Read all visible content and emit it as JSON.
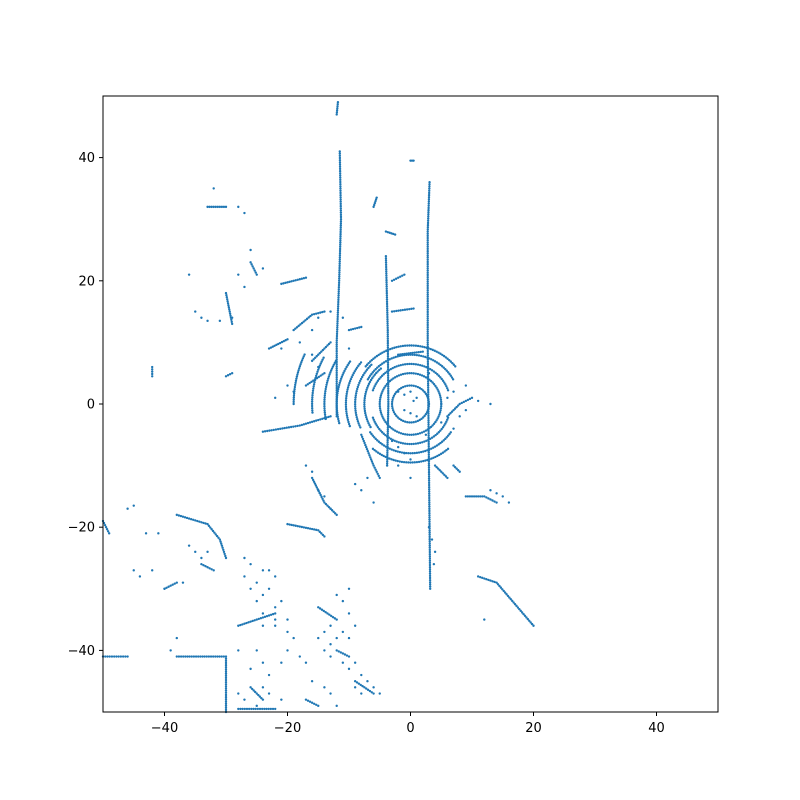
{
  "chart_data": {
    "type": "scatter",
    "title": "",
    "xlabel": "",
    "ylabel": "",
    "xlim": [
      -50,
      50
    ],
    "ylim": [
      -50,
      50
    ],
    "xticks": [
      -40,
      -20,
      0,
      20,
      40
    ],
    "yticks": [
      -40,
      -20,
      0,
      20,
      40
    ],
    "grid": false,
    "legend": "none",
    "marker_color": "#1f77b4",
    "series": [
      {
        "polylines": [
          [
            [
              -12,
              -2
            ],
            [
              -12,
              10
            ],
            [
              -11.6,
              20
            ],
            [
              -11.3,
              30
            ],
            [
              -11.5,
              41
            ]
          ],
          [
            [
              3.2,
              -30
            ],
            [
              3,
              -10
            ],
            [
              2.8,
              10
            ],
            [
              2.8,
              28
            ],
            [
              3.1,
              36
            ]
          ],
          [
            [
              -4,
              24
            ],
            [
              -3.7,
              12
            ],
            [
              -3.6,
              0
            ],
            [
              -3.8,
              -10
            ]
          ],
          [
            [
              -4,
              28
            ],
            [
              -2.5,
              27.5
            ]
          ],
          [
            [
              -24,
              -4.5
            ],
            [
              -18,
              -3.5
            ],
            [
              -13,
              -2
            ]
          ],
          [
            [
              -20,
              -19.5
            ],
            [
              -15,
              -20.5
            ],
            [
              -14,
              -21.5
            ]
          ],
          [
            [
              -38,
              -18
            ],
            [
              -33,
              -19.5
            ],
            [
              -31,
              -22
            ],
            [
              -30,
              -25
            ]
          ],
          [
            [
              -38,
              -41
            ],
            [
              -30,
              -41
            ],
            [
              -30,
              -50
            ]
          ],
          [
            [
              -50,
              -41
            ],
            [
              -46,
              -41
            ]
          ],
          [
            [
              -50,
              -19
            ],
            [
              -49,
              -21
            ]
          ],
          [
            [
              11,
              -28
            ],
            [
              14,
              -29
            ],
            [
              20,
              -36
            ]
          ],
          [
            [
              6,
              -2
            ],
            [
              8,
              0
            ],
            [
              10,
              1
            ]
          ],
          [
            [
              9,
              -15
            ],
            [
              12,
              -15
            ],
            [
              14,
              -16
            ]
          ],
          [
            [
              -8,
              -5
            ],
            [
              -6,
              -10
            ],
            [
              -5,
              -12
            ]
          ],
          [
            [
              -16,
              -12
            ],
            [
              -14,
              -16
            ],
            [
              -12,
              -18
            ]
          ],
          [
            [
              -26,
              23
            ],
            [
              -25,
              21
            ]
          ],
          [
            [
              -30,
              18
            ],
            [
              -29,
              13
            ]
          ],
          [
            [
              -33,
              32
            ],
            [
              -30,
              32
            ]
          ],
          [
            [
              -21,
              19.5
            ],
            [
              -17,
              20.5
            ]
          ],
          [
            [
              -23,
              9
            ],
            [
              -20,
              10.5
            ]
          ],
          [
            [
              -19,
              12
            ],
            [
              -16,
              14.5
            ],
            [
              -14,
              15
            ]
          ],
          [
            [
              -16,
              7
            ],
            [
              -13,
              10
            ]
          ],
          [
            [
              -17,
              3
            ],
            [
              -14,
              5
            ]
          ],
          [
            [
              -42,
              6
            ],
            [
              -42,
              4.5
            ]
          ],
          [
            [
              -30,
              4.5
            ],
            [
              -29,
              5
            ]
          ],
          [
            [
              -40,
              -30
            ],
            [
              -38,
              -29
            ]
          ],
          [
            [
              -34,
              -26
            ],
            [
              -32,
              -27
            ]
          ],
          [
            [
              -28,
              -36
            ],
            [
              -22,
              -34
            ]
          ],
          [
            [
              -6,
              32
            ],
            [
              -5.5,
              33.5
            ]
          ],
          [
            [
              0,
              39.5
            ],
            [
              0.5,
              39.5
            ]
          ],
          [
            [
              -12,
              47
            ],
            [
              -11.8,
              49
            ]
          ],
          [
            [
              -3,
              20
            ],
            [
              -1,
              21
            ]
          ],
          [
            [
              -3,
              15
            ],
            [
              0.5,
              15.5
            ]
          ],
          [
            [
              -10,
              12
            ],
            [
              -8,
              12.5
            ]
          ],
          [
            [
              -2,
              8
            ],
            [
              2,
              8.5
            ]
          ],
          [
            [
              4,
              -10
            ],
            [
              6,
              -12
            ]
          ],
          [
            [
              7,
              -10
            ],
            [
              8,
              -11
            ]
          ],
          [
            [
              -12,
              -40
            ],
            [
              -10,
              -41
            ]
          ],
          [
            [
              -9,
              -45
            ],
            [
              -6,
              -47
            ]
          ],
          [
            [
              -26,
              -46
            ],
            [
              -24,
              -48
            ]
          ],
          [
            [
              -28,
              -49.5
            ],
            [
              -22,
              -49.5
            ]
          ],
          [
            [
              -17,
              -48
            ],
            [
              -15,
              -49
            ]
          ],
          [
            [
              -15,
              -33
            ],
            [
              -12,
              -35
            ]
          ]
        ],
        "arcs": [
          {
            "cx": 0,
            "cy": 0,
            "r": 5,
            "a0": 0,
            "a1": 360
          },
          {
            "cx": 0,
            "cy": 0,
            "r": 6.5,
            "a0": 20,
            "a1": 160
          },
          {
            "cx": 0,
            "cy": 0,
            "r": 8,
            "a0": 30,
            "a1": 150
          },
          {
            "cx": 0,
            "cy": 0,
            "r": 9.5,
            "a0": 40,
            "a1": 140
          },
          {
            "cx": 0,
            "cy": 0,
            "r": 6.5,
            "a0": 200,
            "a1": 340
          },
          {
            "cx": 0,
            "cy": 0,
            "r": 8,
            "a0": 215,
            "a1": 325
          },
          {
            "cx": 0,
            "cy": 0,
            "r": 9.5,
            "a0": 230,
            "a1": 310
          },
          {
            "cx": 0,
            "cy": 0,
            "r": 7.5,
            "a0": 130,
            "a1": 210
          },
          {
            "cx": 0,
            "cy": 0,
            "r": 9,
            "a0": 135,
            "a1": 205
          },
          {
            "cx": 0,
            "cy": 0,
            "r": 10.5,
            "a0": 140,
            "a1": 200
          },
          {
            "cx": 0,
            "cy": 0,
            "r": 12,
            "a0": 145,
            "a1": 195
          },
          {
            "cx": 0,
            "cy": 0,
            "r": 14,
            "a0": 150,
            "a1": 190
          },
          {
            "cx": 0,
            "cy": 0,
            "r": 16,
            "a0": 152,
            "a1": 185
          },
          {
            "cx": 0,
            "cy": 0,
            "r": 19,
            "a0": 155,
            "a1": 180
          },
          {
            "cx": 0,
            "cy": 0,
            "r": 3,
            "a0": 0,
            "a1": 360
          }
        ],
        "points": [
          [
            -2,
            2
          ],
          [
            -1,
            1.5
          ],
          [
            0,
            2
          ],
          [
            1,
            1
          ],
          [
            -1,
            -1
          ],
          [
            0,
            -1.5
          ],
          [
            1,
            -2
          ],
          [
            0.5,
            0.5
          ],
          [
            -3,
            -6
          ],
          [
            -2,
            -7
          ],
          [
            -1,
            -8
          ],
          [
            0,
            -9
          ],
          [
            -2,
            -10
          ],
          [
            0,
            -12
          ],
          [
            -14,
            -37
          ],
          [
            -13,
            -36
          ],
          [
            -12,
            -38
          ],
          [
            -11,
            -37
          ],
          [
            -10,
            -38
          ],
          [
            -9,
            -36
          ],
          [
            -13,
            -39
          ],
          [
            -10,
            -34
          ],
          [
            -27,
            -28
          ],
          [
            -26,
            -30
          ],
          [
            -25,
            -29
          ],
          [
            -24,
            -31
          ],
          [
            -23,
            -30
          ],
          [
            -22,
            -28
          ],
          [
            -21,
            -32
          ],
          [
            -22,
            -33
          ],
          [
            -26,
            -26
          ],
          [
            -27,
            -25
          ],
          [
            -24,
            -27
          ],
          [
            -23,
            -27
          ],
          [
            -25,
            -32
          ],
          [
            -24,
            -34
          ],
          [
            -22,
            -36
          ],
          [
            -20,
            -35
          ],
          [
            -15,
            -38
          ],
          [
            -14,
            -40
          ],
          [
            -13,
            -41
          ],
          [
            -11,
            -42
          ],
          [
            -10,
            -43
          ],
          [
            -9,
            -46
          ],
          [
            -8,
            -47
          ],
          [
            -25,
            -40
          ],
          [
            -24,
            -42
          ],
          [
            -23,
            -44
          ],
          [
            -24,
            -46
          ],
          [
            -45,
            -27
          ],
          [
            -44,
            -28
          ],
          [
            -42,
            -27
          ],
          [
            -40,
            -30
          ],
          [
            -37,
            -29
          ],
          [
            -36,
            -23
          ],
          [
            -35,
            -24
          ],
          [
            -34,
            -25
          ],
          [
            -33,
            -24
          ],
          [
            -46,
            -17
          ],
          [
            -45,
            -16.5
          ],
          [
            -43,
            -21
          ],
          [
            -41,
            -21
          ],
          [
            -39,
            -40
          ],
          [
            -38,
            -38
          ],
          [
            -36,
            21
          ],
          [
            -33,
            13.5
          ],
          [
            -31,
            13.5
          ],
          [
            -29,
            14
          ],
          [
            -35,
            15
          ],
          [
            -34,
            14
          ],
          [
            -27,
            19
          ],
          [
            -28,
            21
          ],
          [
            -24,
            22
          ],
          [
            -26,
            25
          ],
          [
            -27,
            31
          ],
          [
            -28,
            32
          ],
          [
            -32,
            35
          ],
          [
            -19,
            2
          ],
          [
            -20,
            3
          ],
          [
            -21,
            9
          ],
          [
            -22,
            1
          ],
          [
            -18,
            10
          ],
          [
            -16,
            8
          ],
          [
            -15,
            6
          ],
          [
            -16,
            12
          ],
          [
            -15,
            14
          ],
          [
            -13,
            15
          ],
          [
            -11,
            14
          ],
          [
            -10,
            9
          ],
          [
            -17,
            -10
          ],
          [
            -16,
            -11
          ],
          [
            -15,
            -14
          ],
          [
            -14,
            -15
          ],
          [
            -13,
            -17
          ],
          [
            -9,
            -13
          ],
          [
            -8,
            -14
          ],
          [
            -6,
            -16
          ],
          [
            -7,
            -12
          ],
          [
            -10,
            -30
          ],
          [
            -11,
            -32
          ],
          [
            -12,
            -31
          ],
          [
            -18,
            -41
          ],
          [
            -17,
            -42
          ],
          [
            -24,
            -36
          ],
          [
            -22,
            -35
          ],
          [
            -20,
            -37
          ],
          [
            -19,
            -38
          ],
          [
            -28,
            -40
          ],
          [
            -26,
            -43
          ],
          [
            7,
            -4
          ],
          [
            8,
            -2
          ],
          [
            9,
            -1
          ],
          [
            5,
            -3
          ],
          [
            6,
            1
          ],
          [
            7,
            2
          ],
          [
            9,
            3
          ],
          [
            11,
            0.5
          ],
          [
            13,
            0
          ],
          [
            13,
            -14
          ],
          [
            14,
            -14.5
          ],
          [
            15,
            -15
          ],
          [
            16,
            -16
          ],
          [
            12,
            -35
          ],
          [
            3,
            5
          ],
          [
            2.5,
            -5
          ],
          [
            3,
            -20
          ],
          [
            3.5,
            -22
          ],
          [
            4,
            -24
          ],
          [
            3.8,
            -26
          ],
          [
            -20,
            -40
          ],
          [
            -21,
            -42
          ],
          [
            -16,
            -45
          ],
          [
            -14,
            -46
          ],
          [
            -13,
            -47
          ],
          [
            -12,
            -49
          ],
          [
            -9,
            -42
          ],
          [
            -8,
            -44
          ],
          [
            -7,
            -45
          ],
          [
            -6,
            -46
          ],
          [
            -5,
            -47
          ],
          [
            -28,
            -47
          ],
          [
            -27,
            -48
          ],
          [
            -25,
            -49
          ],
          [
            -23,
            -47
          ],
          [
            -21,
            -48
          ]
        ]
      }
    ]
  }
}
